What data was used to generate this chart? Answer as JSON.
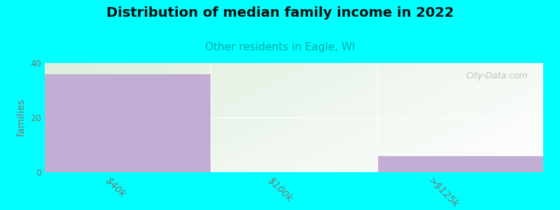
{
  "title": "Distribution of median family income in 2022",
  "subtitle": "Other residents in Eagle, WI",
  "categories": [
    "$40k",
    "$100k",
    ">$125k"
  ],
  "values": [
    36,
    0,
    6
  ],
  "bar_color": "#c2aed4",
  "background_color": "#00ffff",
  "gradient_top_left": "#ddeedd",
  "gradient_bottom_right": "#f8f8f8",
  "ylabel": "families",
  "ylim": [
    0,
    40
  ],
  "yticks": [
    0,
    20,
    40
  ],
  "title_fontsize": 14,
  "subtitle_fontsize": 11,
  "subtitle_color": "#00aaaa",
  "ylabel_color": "#777777",
  "tick_color": "#777777",
  "watermark": "City-Data.com",
  "tick_fontsize": 9,
  "xlabel_rotation": -45
}
